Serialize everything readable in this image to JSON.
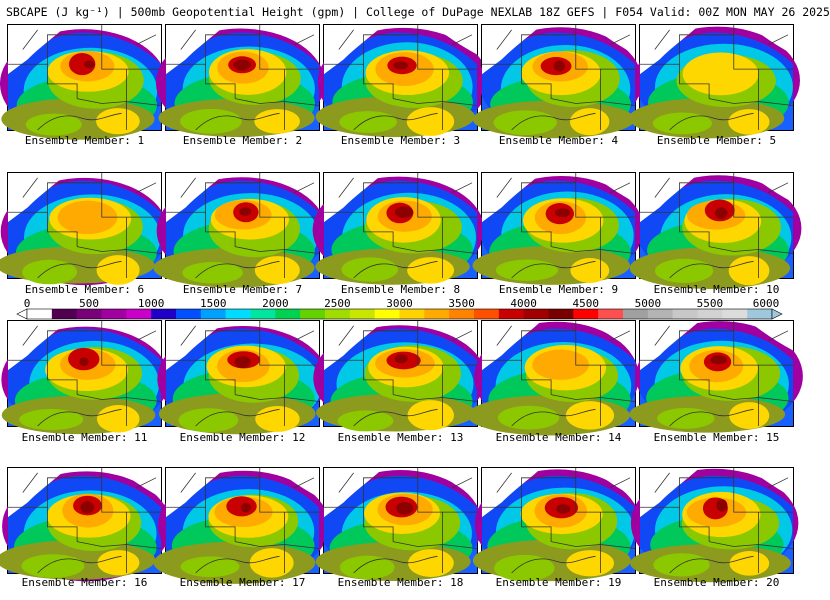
{
  "title": "SBCAPE (J kg⁻¹) | 500mb Geopotential Height (gpm) | College of DuPage NEXLAB 18Z GEFS | F054 Valid: 00Z MON MAY 26 2025",
  "caption_prefix": "Ensemble Member:",
  "members": [
    {
      "n": "1",
      "peak": "high"
    },
    {
      "n": "2",
      "peak": "high"
    },
    {
      "n": "3",
      "peak": "high"
    },
    {
      "n": "4",
      "peak": "high"
    },
    {
      "n": "5",
      "peak": "low"
    },
    {
      "n": "6",
      "peak": "mid"
    },
    {
      "n": "7",
      "peak": "high"
    },
    {
      "n": "8",
      "peak": "high"
    },
    {
      "n": "9",
      "peak": "high"
    },
    {
      "n": "10",
      "peak": "high"
    },
    {
      "n": "11",
      "peak": "high"
    },
    {
      "n": "12",
      "peak": "high"
    },
    {
      "n": "13",
      "peak": "high"
    },
    {
      "n": "14",
      "peak": "mid"
    },
    {
      "n": "15",
      "peak": "high"
    },
    {
      "n": "16",
      "peak": "high"
    },
    {
      "n": "17",
      "peak": "high"
    },
    {
      "n": "18",
      "peak": "high"
    },
    {
      "n": "19",
      "peak": "high"
    },
    {
      "n": "20",
      "peak": "high"
    }
  ],
  "colorbar": {
    "min": 0,
    "max": 6000,
    "labels": [
      "0",
      "500",
      "1000",
      "1500",
      "2000",
      "2500",
      "3000",
      "3500",
      "4000",
      "4500",
      "5000",
      "5500",
      "6000"
    ],
    "colors": [
      "#ffffff",
      "#500050",
      "#780078",
      "#a000a0",
      "#c800c8",
      "#1e00c8",
      "#0050ff",
      "#00a0ff",
      "#00dcff",
      "#00e6a0",
      "#00d250",
      "#64d200",
      "#a0dc00",
      "#c8e600",
      "#ffff00",
      "#ffd200",
      "#ffaa00",
      "#ff8200",
      "#ff5000",
      "#c80000",
      "#a00000",
      "#780000",
      "#ff0000",
      "#ff5050",
      "#a0a0a0",
      "#b4b4b4",
      "#c8c8c8",
      "#d2d2d2",
      "#dcdcdc",
      "#a0c8dc"
    ]
  },
  "palette": {
    "outer": "#a000a0",
    "ring": "#0050ff",
    "cyan": "#00c8e6",
    "green": "#00c85a",
    "lime": "#8cc800",
    "olive": "#8c9b1e",
    "yellow": "#ffd700",
    "orange": "#ffaa00",
    "red": "#c80000",
    "dark": "#8c0000",
    "border": "#333333",
    "land": "#ffffff"
  }
}
